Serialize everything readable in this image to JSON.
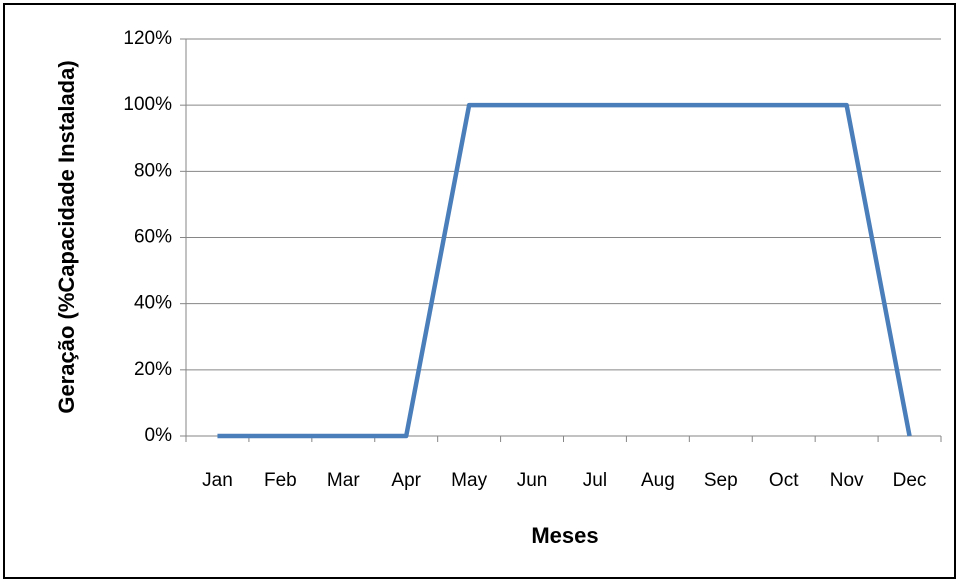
{
  "chart_data": {
    "type": "line",
    "x_label": "Meses",
    "y_label": "Geração (%Capacidade Instalada)",
    "categories": [
      "Jan",
      "Feb",
      "Mar",
      "Apr",
      "May",
      "Jun",
      "Jul",
      "Aug",
      "Sep",
      "Oct",
      "Nov",
      "Dec"
    ],
    "values": [
      0,
      0,
      0,
      0,
      100,
      100,
      100,
      100,
      100,
      100,
      100,
      0
    ],
    "color": "#4a7ebb",
    "ylim": [
      0,
      120
    ],
    "yticks": [
      {
        "value": 0,
        "label": "0%"
      },
      {
        "value": 20,
        "label": "20%"
      },
      {
        "value": 40,
        "label": "40%"
      },
      {
        "value": 60,
        "label": "60%"
      },
      {
        "value": 80,
        "label": "80%"
      },
      {
        "value": 100,
        "label": "100%"
      },
      {
        "value": 120,
        "label": "120%"
      }
    ],
    "grid": true
  }
}
